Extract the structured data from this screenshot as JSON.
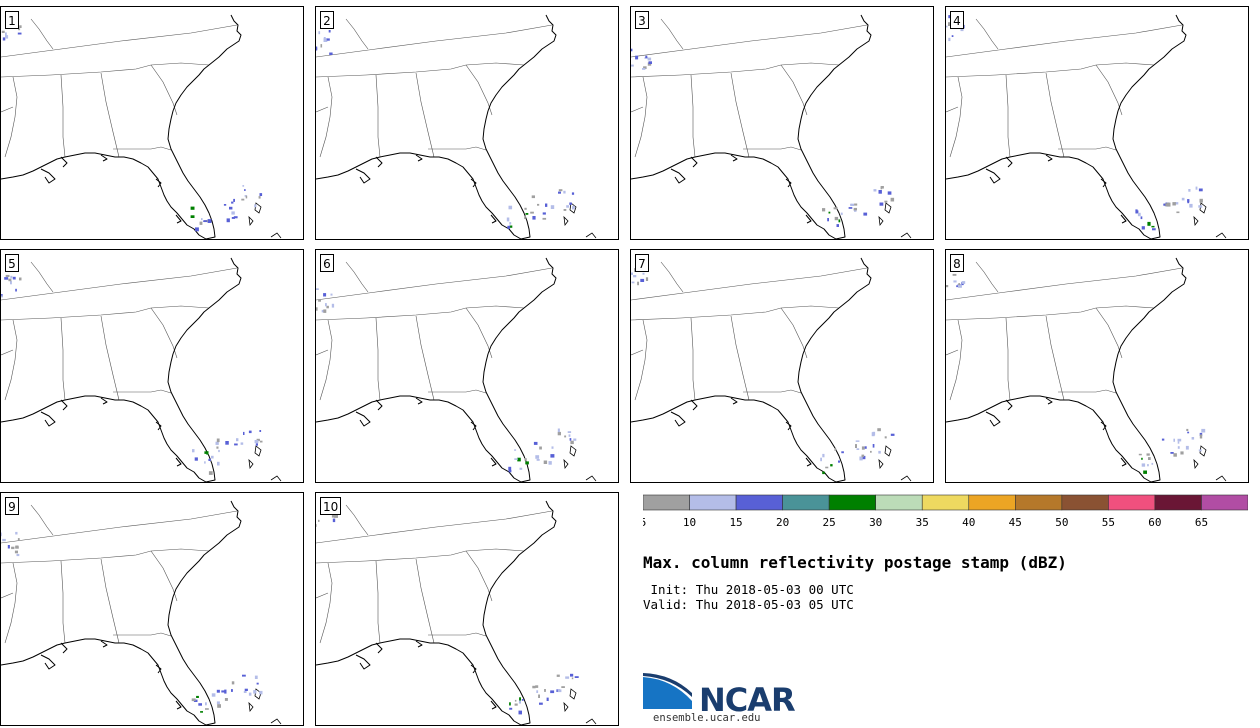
{
  "title": "Max. column reflectivity postage stamp (dBZ)",
  "init": {
    "label": " Init:",
    "day": "Thu",
    "date": "2018-05-03",
    "time": "00 UTC"
  },
  "valid": {
    "label": "Valid:",
    "day": "Thu",
    "date": "2018-05-03",
    "time": "05 UTC"
  },
  "members": [
    "1",
    "2",
    "3",
    "4",
    "5",
    "6",
    "7",
    "8",
    "9",
    "10"
  ],
  "colorbar": {
    "ticks": [
      "5",
      "10",
      "15",
      "20",
      "25",
      "30",
      "35",
      "40",
      "45",
      "50",
      "55",
      "60",
      "65"
    ],
    "colors": [
      "#a0a0a0",
      "#b4bde8",
      "#5860d6",
      "#4a9398",
      "#008000",
      "#bcdcb8",
      "#eed960",
      "#eca524",
      "#b5782a",
      "#8a5233",
      "#f0507e",
      "#6a1635",
      "#b14da4"
    ]
  },
  "logo": {
    "name": "NCAR",
    "url": "ensemble.ucar.edu",
    "icon": "ncar-swoosh-icon"
  }
}
